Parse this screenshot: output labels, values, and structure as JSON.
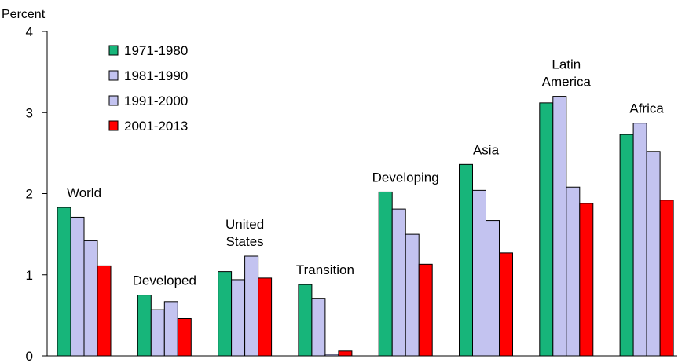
{
  "chart_data": {
    "type": "bar",
    "title": "",
    "xlabel": "",
    "ylabel": "Percent",
    "ylim": [
      0,
      4
    ],
    "yticks": [
      "0",
      "1",
      "2",
      "3",
      "4"
    ],
    "grid": false,
    "legend_position": "top-left",
    "group_labels": [
      [
        "World"
      ],
      [
        "Developed"
      ],
      [
        "United",
        "States"
      ],
      [
        "Transition"
      ],
      [
        "Developing"
      ],
      [
        "Asia"
      ],
      [
        "Latin",
        "America"
      ],
      [
        "Africa"
      ]
    ],
    "series": [
      {
        "name": "1971-1980",
        "color": "#17b57a",
        "values": [
          1.83,
          0.75,
          1.04,
          0.88,
          2.02,
          2.36,
          3.12,
          2.73
        ]
      },
      {
        "name": "1981-1990",
        "color": "#c3c3f0",
        "values": [
          1.71,
          0.57,
          0.94,
          0.71,
          1.81,
          2.04,
          3.2,
          2.87
        ]
      },
      {
        "name": "1991-2000",
        "color": "#c3c3f0",
        "values": [
          1.42,
          0.67,
          1.23,
          0.02,
          1.5,
          1.67,
          2.08,
          2.52
        ]
      },
      {
        "name": "2001-2013",
        "color": "#ff0000",
        "values": [
          1.11,
          0.46,
          0.96,
          0.06,
          1.13,
          1.27,
          1.88,
          1.92
        ]
      }
    ]
  }
}
